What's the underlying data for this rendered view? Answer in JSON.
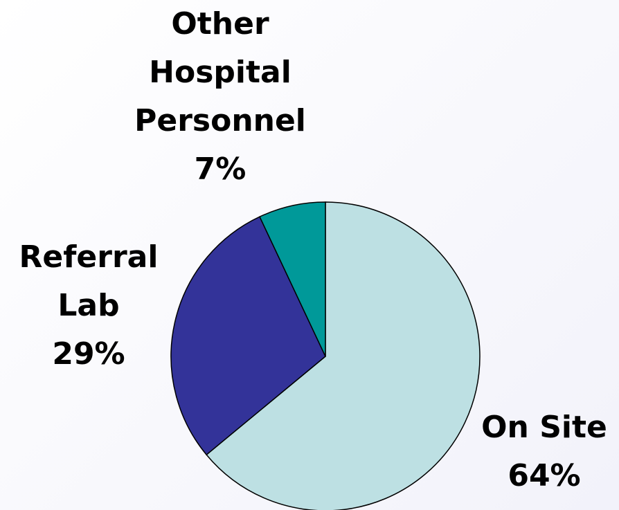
{
  "chart_data": {
    "type": "pie",
    "categories": [
      "On Site",
      "Referral Lab",
      "Other Hospital Personnel"
    ],
    "values": [
      64,
      29,
      7
    ],
    "value_labels": [
      "64%",
      "29%",
      "7%"
    ],
    "colors": [
      "#bde0e3",
      "#333399",
      "#009999"
    ]
  }
}
